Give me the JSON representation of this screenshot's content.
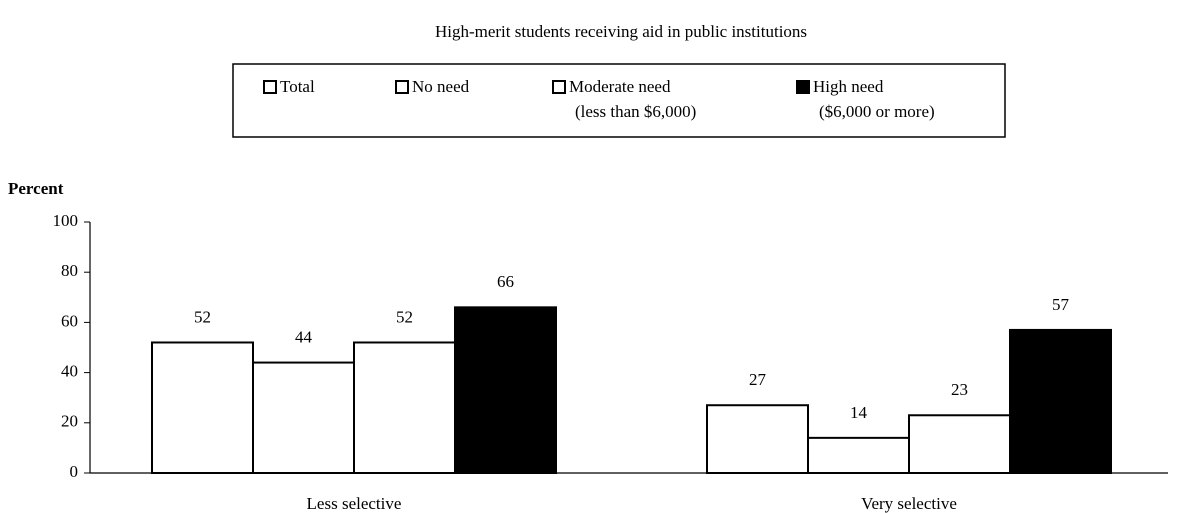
{
  "chart_data": {
    "type": "bar",
    "title": "High-merit students receiving aid in public institutions",
    "y_label": "Percent",
    "categories": [
      "Less selective",
      "Very selective"
    ],
    "series": [
      {
        "name": "Total",
        "color": "#ffffff",
        "values": [
          52,
          27
        ]
      },
      {
        "name": "No need",
        "color": "#ffffff",
        "values": [
          44,
          14
        ]
      },
      {
        "name": "Moderate need (less than $6,000)",
        "color": "#ffffff",
        "values": [
          52,
          23
        ]
      },
      {
        "name": "High need ($6,000 or more)",
        "color": "#000000",
        "values": [
          66,
          57
        ]
      }
    ],
    "ylim": [
      0,
      100
    ],
    "yticks": [
      0,
      20,
      40,
      60,
      80,
      100
    ],
    "grid": false,
    "legend": "top"
  }
}
